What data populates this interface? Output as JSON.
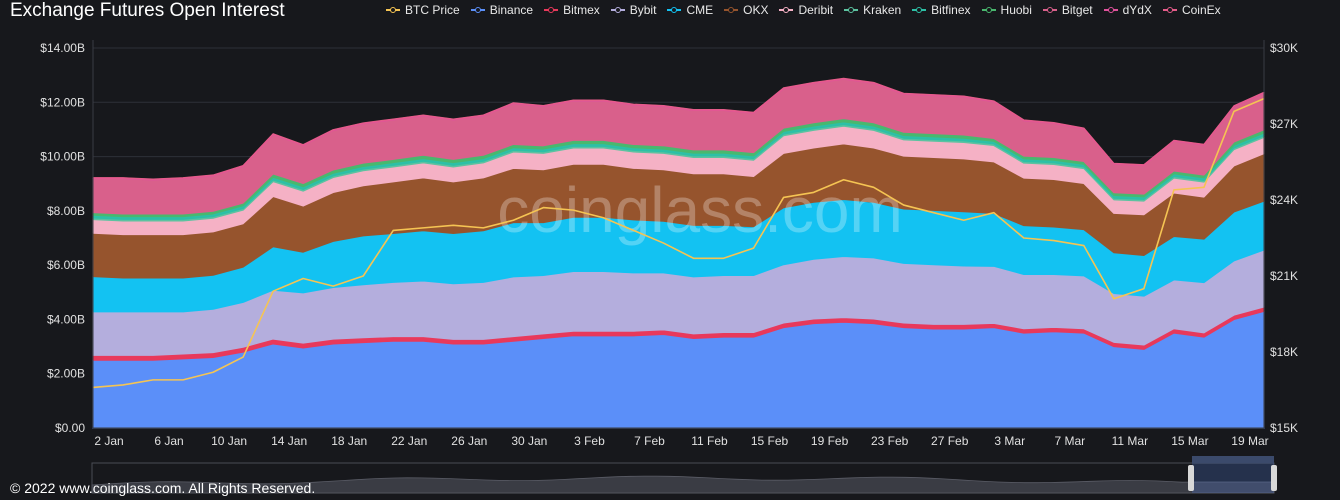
{
  "title": "Exchange  Futures Open Interest",
  "footer": "© 2022 www.coinglass.com. All Rights Reserved.",
  "watermark": "coinglass.com",
  "chart_data": {
    "type": "area",
    "stacked": true,
    "title": "Exchange  Futures Open Interest",
    "x": [
      "2 Jan",
      "4 Jan",
      "6 Jan",
      "8 Jan",
      "10 Jan",
      "12 Jan",
      "14 Jan",
      "16 Jan",
      "18 Jan",
      "20 Jan",
      "22 Jan",
      "24 Jan",
      "26 Jan",
      "28 Jan",
      "30 Jan",
      "1 Feb",
      "3 Feb",
      "5 Feb",
      "7 Feb",
      "9 Feb",
      "11 Feb",
      "13 Feb",
      "15 Feb",
      "17 Feb",
      "19 Feb",
      "21 Feb",
      "23 Feb",
      "25 Feb",
      "27 Feb",
      "1 Mar",
      "3 Mar",
      "5 Mar",
      "7 Mar",
      "9 Mar",
      "11 Mar",
      "13 Mar",
      "15 Mar",
      "17 Mar",
      "19 Mar",
      "21 Mar"
    ],
    "x_ticks": [
      "2 Jan",
      "6 Jan",
      "10 Jan",
      "14 Jan",
      "18 Jan",
      "22 Jan",
      "26 Jan",
      "30 Jan",
      "3 Feb",
      "7 Feb",
      "11 Feb",
      "15 Feb",
      "19 Feb",
      "23 Feb",
      "27 Feb",
      "3 Mar",
      "7 Mar",
      "11 Mar",
      "15 Mar",
      "19 Mar"
    ],
    "y_left": {
      "ticks": [
        "$0.00",
        "$2.00B",
        "$4.00B",
        "$6.00B",
        "$8.00B",
        "$10.00B",
        "$12.00B",
        "$14.00B"
      ],
      "range": [
        0,
        14
      ],
      "unit": "B USD"
    },
    "y_right": {
      "ticks": [
        "$15K",
        "$18K",
        "$21K",
        "$24K",
        "$27K",
        "$30K"
      ],
      "range": [
        15,
        30
      ],
      "unit": "K USD"
    },
    "series": [
      {
        "name": "Binance",
        "color": "#5b8ff9",
        "values": [
          2.5,
          2.5,
          2.5,
          2.55,
          2.6,
          2.8,
          3.1,
          2.95,
          3.1,
          3.15,
          3.2,
          3.2,
          3.1,
          3.1,
          3.2,
          3.3,
          3.4,
          3.4,
          3.4,
          3.45,
          3.3,
          3.35,
          3.35,
          3.7,
          3.85,
          3.9,
          3.85,
          3.7,
          3.65,
          3.65,
          3.7,
          3.5,
          3.55,
          3.5,
          3.0,
          2.9,
          3.5,
          3.35,
          4.0,
          4.3
        ]
      },
      {
        "name": "Bitmex",
        "color": "#e8395b",
        "values": [
          0.18,
          0.18,
          0.18,
          0.18,
          0.18,
          0.18,
          0.18,
          0.18,
          0.18,
          0.18,
          0.17,
          0.17,
          0.17,
          0.17,
          0.17,
          0.17,
          0.17,
          0.17,
          0.17,
          0.17,
          0.17,
          0.17,
          0.17,
          0.17,
          0.17,
          0.17,
          0.17,
          0.17,
          0.17,
          0.17,
          0.16,
          0.16,
          0.16,
          0.16,
          0.16,
          0.16,
          0.16,
          0.16,
          0.16,
          0.16
        ]
      },
      {
        "name": "Bybit",
        "color": "#b4aedd",
        "values": [
          1.6,
          1.6,
          1.6,
          1.55,
          1.6,
          1.65,
          1.8,
          1.85,
          1.9,
          1.95,
          2.0,
          2.05,
          2.05,
          2.1,
          2.2,
          2.15,
          2.2,
          2.2,
          2.15,
          2.1,
          2.1,
          2.1,
          2.1,
          2.15,
          2.2,
          2.25,
          2.25,
          2.2,
          2.2,
          2.15,
          2.1,
          2.0,
          1.95,
          1.95,
          1.8,
          1.8,
          1.8,
          1.85,
          2.0,
          2.1
        ]
      },
      {
        "name": "CME",
        "color": "#13c2f2",
        "values": [
          1.3,
          1.25,
          1.25,
          1.25,
          1.25,
          1.3,
          1.6,
          1.5,
          1.7,
          1.8,
          1.8,
          1.85,
          1.85,
          1.9,
          2.0,
          1.95,
          2.0,
          2.0,
          1.95,
          1.9,
          1.9,
          1.85,
          1.8,
          2.1,
          2.1,
          2.1,
          2.05,
          2.0,
          2.0,
          2.0,
          1.95,
          1.8,
          1.75,
          1.7,
          1.5,
          1.5,
          1.6,
          1.6,
          1.8,
          1.8
        ]
      },
      {
        "name": "OKX",
        "color": "#96542d",
        "values": [
          1.6,
          1.6,
          1.6,
          1.6,
          1.6,
          1.6,
          1.85,
          1.7,
          1.8,
          1.85,
          1.9,
          1.95,
          1.9,
          1.95,
          2.0,
          1.95,
          1.95,
          1.95,
          1.9,
          1.9,
          1.9,
          1.9,
          1.85,
          2.0,
          2.0,
          2.05,
          2.0,
          1.95,
          1.95,
          1.95,
          1.9,
          1.75,
          1.75,
          1.7,
          1.45,
          1.5,
          1.6,
          1.55,
          1.7,
          1.75
        ]
      },
      {
        "name": "Deribit",
        "color": "#f5b1c5",
        "values": [
          0.5,
          0.5,
          0.5,
          0.5,
          0.5,
          0.5,
          0.55,
          0.55,
          0.55,
          0.55,
          0.55,
          0.55,
          0.55,
          0.55,
          0.6,
          0.6,
          0.6,
          0.6,
          0.6,
          0.6,
          0.6,
          0.6,
          0.6,
          0.65,
          0.65,
          0.65,
          0.65,
          0.6,
          0.6,
          0.6,
          0.6,
          0.55,
          0.55,
          0.55,
          0.5,
          0.5,
          0.55,
          0.55,
          0.6,
          0.6
        ]
      },
      {
        "name": "Kraken",
        "color": "#5cc2a0",
        "values": [
          0.06,
          0.06,
          0.06,
          0.06,
          0.06,
          0.06,
          0.06,
          0.06,
          0.06,
          0.06,
          0.06,
          0.06,
          0.06,
          0.06,
          0.06,
          0.06,
          0.06,
          0.06,
          0.06,
          0.06,
          0.06,
          0.06,
          0.06,
          0.06,
          0.06,
          0.06,
          0.06,
          0.06,
          0.06,
          0.06,
          0.06,
          0.06,
          0.06,
          0.06,
          0.06,
          0.06,
          0.06,
          0.06,
          0.06,
          0.06
        ]
      },
      {
        "name": "Bitfinex",
        "color": "#2dc0a6",
        "values": [
          0.1,
          0.1,
          0.1,
          0.1,
          0.1,
          0.1,
          0.1,
          0.1,
          0.1,
          0.1,
          0.1,
          0.1,
          0.1,
          0.1,
          0.1,
          0.1,
          0.1,
          0.1,
          0.1,
          0.1,
          0.1,
          0.1,
          0.1,
          0.1,
          0.1,
          0.1,
          0.1,
          0.1,
          0.1,
          0.1,
          0.1,
          0.1,
          0.1,
          0.1,
          0.1,
          0.1,
          0.1,
          0.1,
          0.1,
          0.1
        ]
      },
      {
        "name": "Huobi",
        "color": "#49b86e",
        "values": [
          0.1,
          0.1,
          0.1,
          0.1,
          0.1,
          0.1,
          0.12,
          0.12,
          0.12,
          0.12,
          0.12,
          0.12,
          0.12,
          0.12,
          0.12,
          0.12,
          0.12,
          0.12,
          0.12,
          0.12,
          0.12,
          0.12,
          0.12,
          0.12,
          0.12,
          0.12,
          0.12,
          0.12,
          0.12,
          0.12,
          0.1,
          0.1,
          0.1,
          0.1,
          0.1,
          0.1,
          0.1,
          0.1,
          0.12,
          0.12
        ]
      },
      {
        "name": "Bitget",
        "color": "#d9608b",
        "values": [
          1.25,
          1.3,
          1.25,
          1.3,
          1.3,
          1.35,
          1.45,
          1.4,
          1.45,
          1.45,
          1.45,
          1.45,
          1.45,
          1.45,
          1.5,
          1.45,
          1.45,
          1.45,
          1.45,
          1.45,
          1.45,
          1.45,
          1.45,
          1.45,
          1.45,
          1.45,
          1.45,
          1.4,
          1.4,
          1.4,
          1.35,
          1.3,
          1.25,
          1.2,
          1.05,
          1.05,
          1.1,
          1.1,
          1.3,
          1.35
        ]
      },
      {
        "name": "dYdX",
        "color": "#e0529c",
        "values": [
          0.02,
          0.02,
          0.02,
          0.02,
          0.02,
          0.02,
          0.02,
          0.02,
          0.02,
          0.02,
          0.02,
          0.02,
          0.02,
          0.02,
          0.02,
          0.02,
          0.02,
          0.02,
          0.02,
          0.02,
          0.02,
          0.02,
          0.02,
          0.02,
          0.02,
          0.02,
          0.02,
          0.02,
          0.02,
          0.02,
          0.02,
          0.02,
          0.02,
          0.02,
          0.02,
          0.02,
          0.02,
          0.02,
          0.02,
          0.02
        ]
      },
      {
        "name": "CoinEx",
        "color": "#e55c8a",
        "values": [
          0.01,
          0.01,
          0.01,
          0.01,
          0.01,
          0.01,
          0.01,
          0.01,
          0.01,
          0.01,
          0.01,
          0.01,
          0.01,
          0.01,
          0.01,
          0.01,
          0.01,
          0.01,
          0.01,
          0.01,
          0.01,
          0.01,
          0.01,
          0.01,
          0.01,
          0.01,
          0.01,
          0.01,
          0.01,
          0.01,
          0.01,
          0.01,
          0.01,
          0.01,
          0.01,
          0.01,
          0.01,
          0.01,
          0.01,
          0.01
        ]
      }
    ],
    "btc_price": {
      "name": "BTC Price",
      "color": "#f5c453",
      "axis": "right",
      "values": [
        16.6,
        16.7,
        16.9,
        16.9,
        17.2,
        17.8,
        20.4,
        20.9,
        20.6,
        21.0,
        22.8,
        22.9,
        23.0,
        22.9,
        23.2,
        23.7,
        23.6,
        23.3,
        22.8,
        22.3,
        21.7,
        21.7,
        22.1,
        24.1,
        24.3,
        24.8,
        24.5,
        23.8,
        23.5,
        23.2,
        23.5,
        22.5,
        22.4,
        22.2,
        20.1,
        20.5,
        24.4,
        24.5,
        27.5,
        28.0
      ]
    }
  }
}
